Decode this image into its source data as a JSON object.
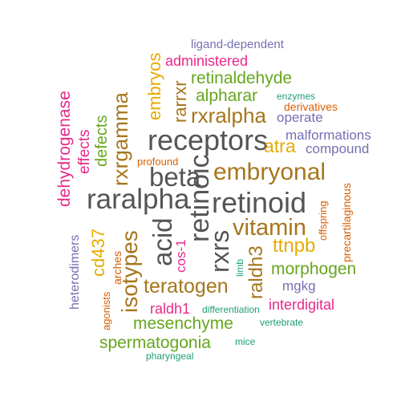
{
  "colors": {
    "teal": "#1b9e77",
    "orange": "#d95f02",
    "purple": "#7570b3",
    "magenta": "#e7298a",
    "green": "#66a61e",
    "gold": "#e6ab02",
    "brown": "#a6761d",
    "gray": "#555555"
  },
  "words": [
    {
      "id": "receptors",
      "text": "receptors",
      "color": "gray"
    },
    {
      "id": "raralpha",
      "text": "raralpha",
      "color": "gray"
    },
    {
      "id": "retinoid",
      "text": "retinoid",
      "color": "gray"
    },
    {
      "id": "retinoic",
      "text": "retinoic",
      "color": "gray"
    },
    {
      "id": "acid",
      "text": "acid",
      "color": "gray"
    },
    {
      "id": "rxrs",
      "text": "rxrs",
      "color": "gray"
    },
    {
      "id": "beta",
      "text": "beta",
      "color": "gray"
    },
    {
      "id": "embryonal",
      "text": "embryonal",
      "color": "brown"
    },
    {
      "id": "rxralpha",
      "text": "rxralpha",
      "color": "brown"
    },
    {
      "id": "vitamin",
      "text": "vitamin",
      "color": "brown"
    },
    {
      "id": "isotypes",
      "text": "isotypes",
      "color": "brown"
    },
    {
      "id": "teratogen",
      "text": "teratogen",
      "color": "brown"
    },
    {
      "id": "raldh3",
      "text": "raldh3",
      "color": "brown"
    },
    {
      "id": "rxrgamma",
      "text": "rxrgamma",
      "color": "brown"
    },
    {
      "id": "rarrxr",
      "text": "rarrxr",
      "color": "brown"
    },
    {
      "id": "embryos",
      "text": "embryos",
      "color": "gold"
    },
    {
      "id": "atra",
      "text": "atra",
      "color": "gold"
    },
    {
      "id": "ttnpb",
      "text": "ttnpb",
      "color": "gold"
    },
    {
      "id": "cd437",
      "text": "cd437",
      "color": "gold"
    },
    {
      "id": "alpharar",
      "text": "alpharar",
      "color": "green"
    },
    {
      "id": "retinaldehyde",
      "text": "retinaldehyde",
      "color": "green"
    },
    {
      "id": "morphogen",
      "text": "morphogen",
      "color": "green"
    },
    {
      "id": "mesenchyme",
      "text": "mesenchyme",
      "color": "green"
    },
    {
      "id": "spermatogonia",
      "text": "spermatogonia",
      "color": "green"
    },
    {
      "id": "defects",
      "text": "defects",
      "color": "green"
    },
    {
      "id": "dehydrogenase",
      "text": "dehydrogenase",
      "color": "magenta"
    },
    {
      "id": "effects",
      "text": "effects",
      "color": "magenta"
    },
    {
      "id": "administered",
      "text": "administered",
      "color": "magenta"
    },
    {
      "id": "interdigital",
      "text": "interdigital",
      "color": "magenta"
    },
    {
      "id": "raldh1",
      "text": "raldh1",
      "color": "magenta"
    },
    {
      "id": "cos1",
      "text": "cos-1",
      "color": "magenta"
    },
    {
      "id": "ligand",
      "text": "ligand-dependent",
      "color": "purple"
    },
    {
      "id": "operate",
      "text": "operate",
      "color": "purple"
    },
    {
      "id": "malformations",
      "text": "malformations",
      "color": "purple"
    },
    {
      "id": "compound",
      "text": "compound",
      "color": "purple"
    },
    {
      "id": "mgkg",
      "text": "mgkg",
      "color": "purple"
    },
    {
      "id": "heterodimers",
      "text": "heterodimers",
      "color": "purple"
    },
    {
      "id": "profound",
      "text": "profound",
      "color": "orange"
    },
    {
      "id": "derivatives",
      "text": "derivatives",
      "color": "orange"
    },
    {
      "id": "precartilaginous",
      "text": "precartilaginous",
      "color": "orange"
    },
    {
      "id": "offspring",
      "text": "offspring",
      "color": "orange"
    },
    {
      "id": "arches",
      "text": "arches",
      "color": "orange"
    },
    {
      "id": "agonists",
      "text": "agonists",
      "color": "orange"
    },
    {
      "id": "enzymes",
      "text": "enzymes",
      "color": "teal"
    },
    {
      "id": "limb",
      "text": "limb",
      "color": "teal"
    },
    {
      "id": "differentiation",
      "text": "differentiation",
      "color": "teal"
    },
    {
      "id": "vertebrate",
      "text": "vertebrate",
      "color": "teal"
    },
    {
      "id": "mice",
      "text": "mice",
      "color": "teal"
    },
    {
      "id": "pharyngeal",
      "text": "pharyngeal",
      "color": "teal"
    }
  ]
}
